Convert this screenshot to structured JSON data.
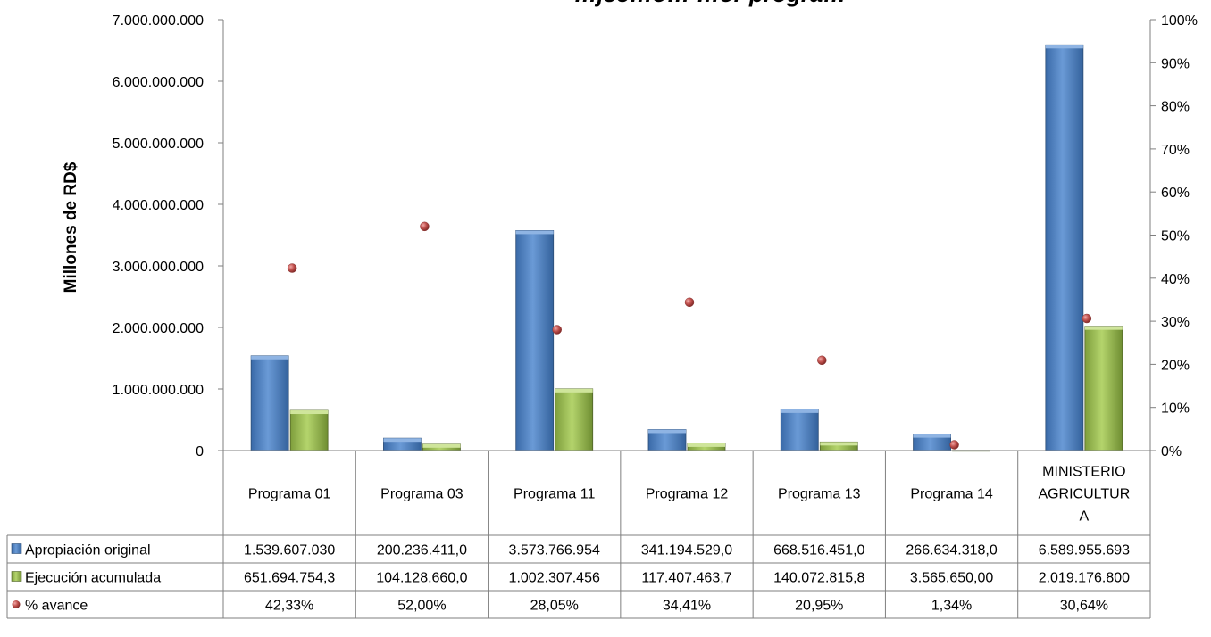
{
  "chart_data": {
    "type": "bar",
    "title": "…jec…ó… …or progra…",
    "ylabel": "Millones de RD$",
    "ylim": [
      0,
      7000000000
    ],
    "y2lim": [
      0,
      1
    ],
    "y_ticks": [
      "0",
      "1.000.000.000",
      "2.000.000.000",
      "3.000.000.000",
      "4.000.000.000",
      "5.000.000.000",
      "6.000.000.000",
      "7.000.000.000"
    ],
    "y2_ticks": [
      "0%",
      "10%",
      "20%",
      "30%",
      "40%",
      "50%",
      "60%",
      "70%",
      "80%",
      "90%",
      "100%"
    ],
    "grid": false,
    "legend": "data-table",
    "categories": [
      [
        "Programa 01"
      ],
      [
        "Programa 03"
      ],
      [
        "Programa 11"
      ],
      [
        "Programa 12"
      ],
      [
        "Programa 13"
      ],
      [
        "Programa 14"
      ],
      [
        "MINISTERIO",
        "AGRICULTUR",
        "A"
      ]
    ],
    "series": [
      {
        "name": "Apropiación original",
        "kind": "bar",
        "axis": "left",
        "color": "#4f81bd",
        "values": [
          1539607030,
          200236411,
          3573766954,
          341194529,
          668516451,
          266634318,
          6589955693
        ],
        "labels": [
          "1.539.607.030",
          "200.236.411,0",
          "3.573.766.954",
          "341.194.529,0",
          "668.516.451,0",
          "266.634.318,0",
          "6.589.955.693"
        ]
      },
      {
        "name": "Ejecución acumulada",
        "kind": "bar",
        "axis": "left",
        "color": "#9bbb59",
        "values": [
          651694754.3,
          104128660,
          1002307456,
          117407463.7,
          140072815.8,
          3565650,
          2019176800
        ],
        "labels": [
          "651.694.754,3",
          "104.128.660,0",
          "1.002.307.456",
          "117.407.463,7",
          "140.072.815,8",
          "3.565.650,00",
          "2.019.176.800"
        ]
      },
      {
        "name": "% avance",
        "kind": "scatter",
        "axis": "right",
        "color": "#c0504d",
        "values": [
          0.4233,
          0.52,
          0.2805,
          0.3441,
          0.2095,
          0.0134,
          0.3064
        ],
        "labels": [
          "42,33%",
          "52,00%",
          "28,05%",
          "34,41%",
          "20,95%",
          "1,34%",
          "30,64%"
        ]
      }
    ]
  }
}
